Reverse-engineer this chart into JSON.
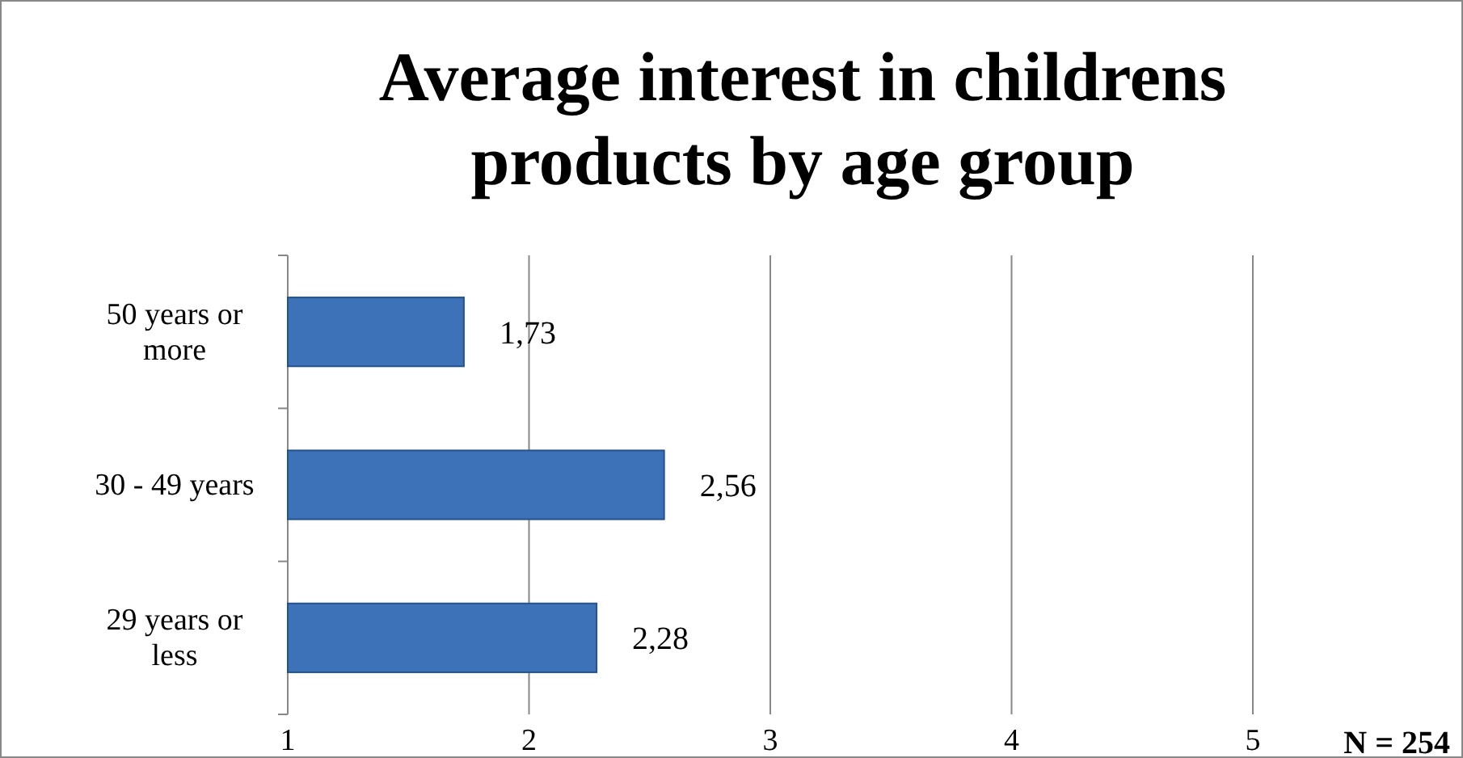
{
  "chart_data": {
    "type": "bar",
    "orientation": "horizontal",
    "title": "Average interest in childrens products by age group",
    "categories": [
      "50 years or more",
      "30 - 49 years",
      "29 years or less"
    ],
    "values": [
      1.73,
      2.56,
      2.28
    ],
    "value_labels": [
      "1,73",
      "2,56",
      "2,28"
    ],
    "color": "#3d72b8",
    "xlim": [
      1,
      5
    ],
    "xticks": [
      1,
      2,
      3,
      4,
      5
    ],
    "grid": "x",
    "annotations": [
      "N = 254"
    ]
  }
}
